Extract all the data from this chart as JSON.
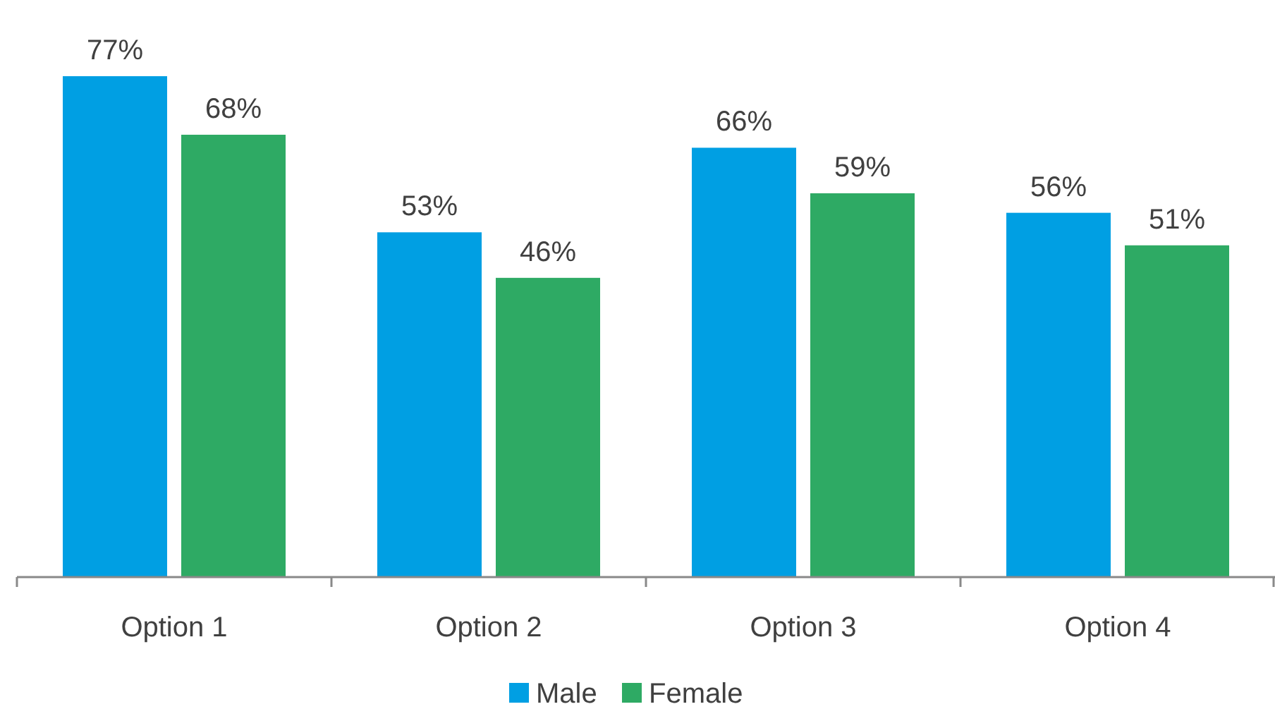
{
  "chart_data": {
    "type": "bar",
    "categories": [
      "Option 1",
      "Option 2",
      "Option 3",
      "Option 4"
    ],
    "series": [
      {
        "name": "Male",
        "color": "#009fe3",
        "values": [
          77,
          53,
          66,
          56
        ],
        "value_labels": [
          "77%",
          "53%",
          "66%",
          "56%"
        ]
      },
      {
        "name": "Female",
        "color": "#2eaa64",
        "values": [
          68,
          46,
          59,
          51
        ],
        "value_labels": [
          "68%",
          "46%",
          "59%",
          "51%"
        ]
      }
    ],
    "tick_labels": "x",
    "legend": "bottom"
  }
}
